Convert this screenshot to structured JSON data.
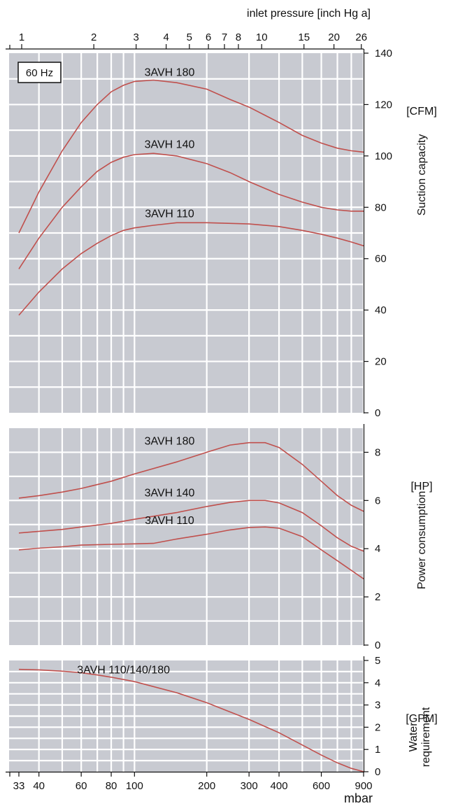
{
  "chart_data": {
    "type": "line",
    "scale": "log",
    "colors": {
      "panel_bg": "#c8cad1",
      "grid": "#ffffff",
      "curve": "#c0504d",
      "text": "#111111"
    },
    "frequency_label": "60 Hz",
    "top_axis": {
      "title": "inlet pressure [inch Hg a]",
      "ticks": [
        {
          "label": "1",
          "mbar": 33.9
        },
        {
          "label": "2",
          "mbar": 67.7
        },
        {
          "label": "3",
          "mbar": 101.6
        },
        {
          "label": "4",
          "mbar": 135.5
        },
        {
          "label": "5",
          "mbar": 169.3
        },
        {
          "label": "6",
          "mbar": 203.2
        },
        {
          "label": "7",
          "mbar": 237
        },
        {
          "label": "8",
          "mbar": 270.9
        },
        {
          "label": "10",
          "mbar": 338.6
        },
        {
          "label": "15",
          "mbar": 508
        },
        {
          "label": "20",
          "mbar": 677.3
        },
        {
          "label": "26",
          "mbar": 880.5
        }
      ]
    },
    "bottom_axis": {
      "unit": "mbar",
      "xlim": [
        33,
        900
      ],
      "ticks": [
        {
          "label": "33",
          "value": 33
        },
        {
          "label": "40",
          "value": 40
        },
        {
          "label": "60",
          "value": 60
        },
        {
          "label": "80",
          "value": 80
        },
        {
          "label": "100",
          "value": 100
        },
        {
          "label": "200",
          "value": 200
        },
        {
          "label": "300",
          "value": 300
        },
        {
          "label": "400",
          "value": 400
        },
        {
          "label": "600",
          "value": 600
        },
        {
          "label": "900",
          "value": 900
        }
      ],
      "grid": [
        40,
        50,
        60,
        70,
        80,
        90,
        100,
        200,
        300,
        400,
        500,
        600,
        700,
        800,
        900
      ]
    },
    "panels": [
      {
        "id": "suction",
        "unit": "[CFM]",
        "ylabel": "Suction capacity",
        "ylim": [
          0,
          140
        ],
        "yticks": [
          0,
          20,
          40,
          60,
          80,
          100,
          120,
          140
        ],
        "series": [
          {
            "name": "3AVH 180",
            "points": [
              [
                33,
                70
              ],
              [
                40,
                86
              ],
              [
                50,
                102
              ],
              [
                60,
                113
              ],
              [
                70,
                120
              ],
              [
                80,
                125
              ],
              [
                90,
                127.5
              ],
              [
                100,
                129
              ],
              [
                120,
                129.5
              ],
              [
                150,
                128.5
              ],
              [
                200,
                126
              ],
              [
                250,
                122
              ],
              [
                300,
                119
              ],
              [
                400,
                113
              ],
              [
                500,
                108
              ],
              [
                600,
                105
              ],
              [
                700,
                103
              ],
              [
                800,
                102
              ],
              [
                900,
                101.5
              ]
            ]
          },
          {
            "name": "3AVH 140",
            "points": [
              [
                33,
                56
              ],
              [
                40,
                68
              ],
              [
                50,
                80
              ],
              [
                60,
                88
              ],
              [
                70,
                94
              ],
              [
                80,
                97.5
              ],
              [
                90,
                99.5
              ],
              [
                100,
                100.5
              ],
              [
                120,
                101
              ],
              [
                150,
                100
              ],
              [
                200,
                97
              ],
              [
                250,
                93.5
              ],
              [
                300,
                90
              ],
              [
                400,
                85
              ],
              [
                500,
                82
              ],
              [
                600,
                80
              ],
              [
                700,
                79
              ],
              [
                800,
                78.5
              ],
              [
                900,
                78.5
              ]
            ]
          },
          {
            "name": "3AVH 110",
            "points": [
              [
                33,
                38
              ],
              [
                40,
                47
              ],
              [
                50,
                56
              ],
              [
                60,
                62
              ],
              [
                70,
                66
              ],
              [
                80,
                69
              ],
              [
                90,
                71
              ],
              [
                100,
                72
              ],
              [
                120,
                73
              ],
              [
                150,
                74
              ],
              [
                200,
                74
              ],
              [
                300,
                73.5
              ],
              [
                400,
                72.5
              ],
              [
                500,
                71
              ],
              [
                600,
                69.5
              ],
              [
                700,
                68
              ],
              [
                800,
                66.5
              ],
              [
                900,
                65
              ]
            ]
          }
        ],
        "label_values": [
          {
            "text": "3AVH 180",
            "x": 140,
            "y": 130
          },
          {
            "text": "3AVH 140",
            "x": 140,
            "y": 102
          },
          {
            "text": "3AVH 110",
            "x": 140,
            "y": 75
          }
        ]
      },
      {
        "id": "power",
        "unit": "[HP]",
        "ylabel": "Power consumption",
        "ylim": [
          0,
          9
        ],
        "yticks": [
          0,
          2,
          4,
          6,
          8
        ],
        "series": [
          {
            "name": "3AVH 180",
            "points": [
              [
                33,
                6.1
              ],
              [
                40,
                6.2
              ],
              [
                50,
                6.35
              ],
              [
                60,
                6.5
              ],
              [
                80,
                6.8
              ],
              [
                100,
                7.1
              ],
              [
                150,
                7.6
              ],
              [
                200,
                8.0
              ],
              [
                250,
                8.3
              ],
              [
                300,
                8.4
              ],
              [
                350,
                8.4
              ],
              [
                400,
                8.2
              ],
              [
                500,
                7.5
              ],
              [
                600,
                6.8
              ],
              [
                700,
                6.2
              ],
              [
                800,
                5.8
              ],
              [
                900,
                5.55
              ]
            ]
          },
          {
            "name": "3AVH 140",
            "points": [
              [
                33,
                4.65
              ],
              [
                40,
                4.72
              ],
              [
                50,
                4.8
              ],
              [
                60,
                4.9
              ],
              [
                80,
                5.05
              ],
              [
                100,
                5.22
              ],
              [
                150,
                5.5
              ],
              [
                200,
                5.75
              ],
              [
                250,
                5.92
              ],
              [
                300,
                6.0
              ],
              [
                350,
                6.0
              ],
              [
                400,
                5.9
              ],
              [
                500,
                5.5
              ],
              [
                600,
                4.95
              ],
              [
                700,
                4.45
              ],
              [
                800,
                4.1
              ],
              [
                900,
                3.9
              ]
            ]
          },
          {
            "name": "3AVH 110",
            "points": [
              [
                33,
                3.95
              ],
              [
                40,
                4.02
              ],
              [
                50,
                4.08
              ],
              [
                60,
                4.15
              ],
              [
                80,
                4.18
              ],
              [
                100,
                4.2
              ],
              [
                120,
                4.22
              ],
              [
                150,
                4.4
              ],
              [
                200,
                4.6
              ],
              [
                250,
                4.78
              ],
              [
                300,
                4.88
              ],
              [
                350,
                4.9
              ],
              [
                400,
                4.85
              ],
              [
                500,
                4.5
              ],
              [
                600,
                3.95
              ],
              [
                700,
                3.5
              ],
              [
                800,
                3.1
              ],
              [
                900,
                2.75
              ]
            ]
          }
        ],
        "label_values": [
          {
            "text": "3AVH 180",
            "x": 140,
            "y": 8.2
          },
          {
            "text": "3AVH 140",
            "x": 140,
            "y": 6.05
          },
          {
            "text": "3AVH 110",
            "x": 140,
            "y": 4.9
          }
        ]
      },
      {
        "id": "water",
        "unit": "[GPM]",
        "ylabel": "Water requirement",
        "ylim": [
          0,
          5
        ],
        "yticks": [
          0,
          1,
          2,
          3,
          4,
          5
        ],
        "series": [
          {
            "name": "3AVH 110/140/180",
            "points": [
              [
                33,
                4.6
              ],
              [
                40,
                4.58
              ],
              [
                50,
                4.52
              ],
              [
                60,
                4.45
              ],
              [
                70,
                4.35
              ],
              [
                80,
                4.25
              ],
              [
                100,
                4.05
              ],
              [
                150,
                3.55
              ],
              [
                200,
                3.1
              ],
              [
                300,
                2.35
              ],
              [
                400,
                1.75
              ],
              [
                500,
                1.2
              ],
              [
                600,
                0.75
              ],
              [
                700,
                0.4
              ],
              [
                800,
                0.15
              ],
              [
                900,
                0.0
              ]
            ]
          }
        ],
        "label_values": [
          {
            "text": "3AVH 110/140/180",
            "x": 90,
            "y": 4.3
          }
        ]
      }
    ]
  }
}
